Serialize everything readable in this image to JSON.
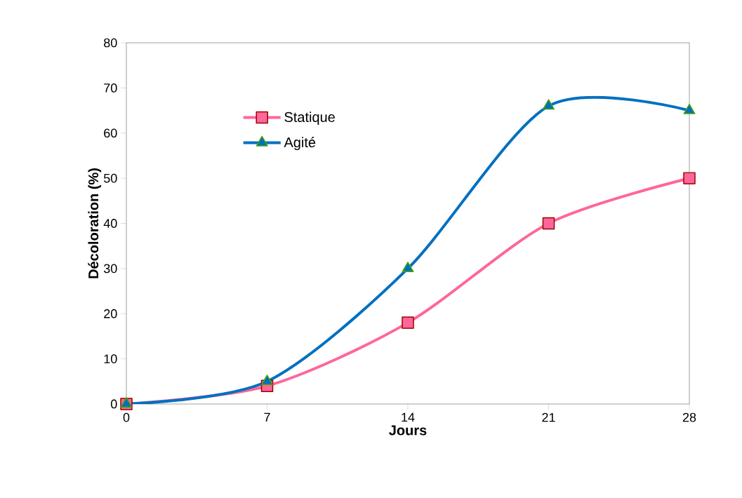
{
  "chart_data": {
    "type": "line",
    "xlabel": "Jours",
    "ylabel": "Décoloration (%)",
    "x": [
      0,
      7,
      14,
      21,
      28
    ],
    "series": [
      {
        "name": "Statique",
        "color": "#ff6699",
        "marker": "square",
        "values": [
          0,
          4,
          18,
          40,
          50
        ]
      },
      {
        "name": "Agité",
        "color": "#0070c0",
        "marker": "triangle",
        "values": [
          0,
          5,
          30,
          66,
          65
        ]
      }
    ],
    "xlim": [
      0,
      28
    ],
    "xticks": [
      0,
      7,
      14,
      21,
      28
    ],
    "ylim": [
      0,
      80
    ],
    "yticks": [
      0,
      10,
      20,
      30,
      40,
      50,
      60,
      70,
      80
    ],
    "legend": "top left",
    "grid": false
  }
}
